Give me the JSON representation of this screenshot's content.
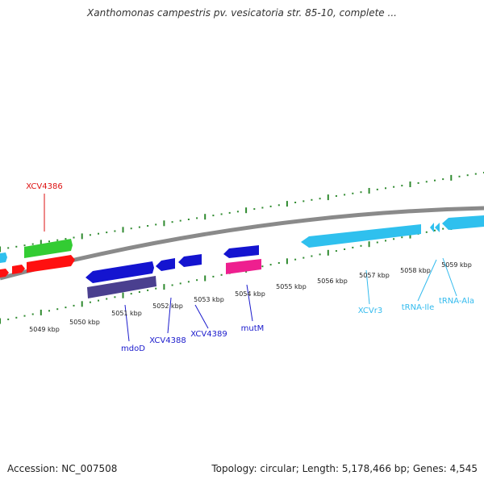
{
  "title": "Xanthomonas campestris pv. vesicatoria str. 85-10, complete ...",
  "footer": {
    "accession": "Accession: NC_007508",
    "topology": "Topology: circular; Length: 5,178,466 bp; Genes: 4,545"
  },
  "colors": {
    "backbone": "#8a8a8a",
    "ticks": "#2f8a2f",
    "red": "#ff1010",
    "green": "#33cc33",
    "blue": "#1414d0",
    "navy": "#4a3f8f",
    "magenta": "#ee1f8f",
    "cyan": "#2fc0ee",
    "label_red": "#dd1111",
    "label_blue": "#1a1acc",
    "label_cyan": "#33bbee"
  },
  "kbp_labels": [
    "5049 kbp",
    "5050 kbp",
    "5051 kbp",
    "5052 kbp",
    "5053 kbp",
    "5054 kbp",
    "5055 kbp",
    "5056 kbp",
    "5057 kbp",
    "5058 kbp",
    "5059 kbp"
  ],
  "genes": {
    "xcv4386": {
      "label": "XCV4386"
    },
    "mdoD": {
      "label": "mdoD"
    },
    "xcv4388": {
      "label": "XCV4388"
    },
    "xcv4389": {
      "label": "XCV4389"
    },
    "mutM": {
      "label": "mutM"
    },
    "xcvr3": {
      "label": "XCVr3"
    },
    "trna_ile": {
      "label": "tRNA-Ile"
    },
    "trna_ala": {
      "label": "tRNA-Ala"
    }
  }
}
